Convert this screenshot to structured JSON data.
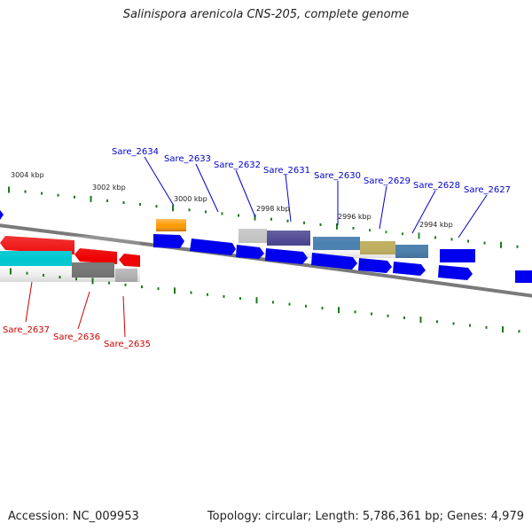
{
  "title": "Salinispora arenicola CNS-205, complete genome",
  "footer": {
    "accession": "Accession: NC_009953",
    "topology": "Topology: circular; Length: 5,786,361 bp; Genes: 4,979"
  },
  "kbp_labels": [
    "3004 kbp",
    "3002 kbp",
    "3000 kbp",
    "2998 kbp",
    "2996 kbp",
    "2994 kbp"
  ],
  "forward_gene_labels": [
    "Sare_2634",
    "Sare_2633",
    "Sare_2632",
    "Sare_2631",
    "Sare_2630",
    "Sare_2629",
    "Sare_2628",
    "Sare_2627"
  ],
  "reverse_gene_labels": [
    "Sare_2637",
    "Sare_2636",
    "Sare_2635"
  ],
  "colors": {
    "forward_label": "#0000cc",
    "reverse_label": "#cc0000",
    "tick": "#1a7a1a",
    "backbone": "#808080",
    "cds_blue": "#0000ee",
    "cds_red": "#ee0000",
    "cds_cyan": "#00c8d0",
    "cds_orange": "#ff9900",
    "cds_gray": "#777777",
    "cds_lightgray": "#c0c0c0",
    "cds_purple": "#4a4590",
    "cds_steel": "#4a80b0",
    "cds_khaki": "#c0b060"
  }
}
